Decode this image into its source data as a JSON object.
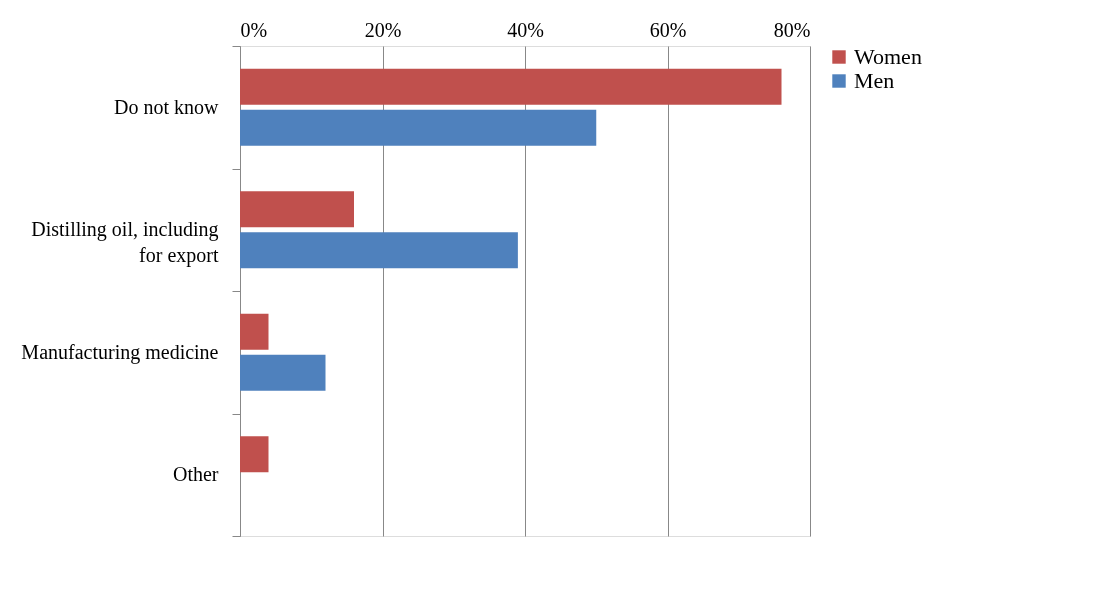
{
  "chart_data": {
    "type": "bar",
    "orientation": "horizontal",
    "categories": [
      "Do not know",
      "Distilling oil, including for export",
      "Manufacturing medicine",
      "Other"
    ],
    "series": [
      {
        "name": "Women",
        "color": "#c0504d",
        "values": [
          76,
          16,
          4,
          4
        ]
      },
      {
        "name": "Men",
        "color": "#4f81bd",
        "values": [
          50,
          39,
          12,
          null
        ]
      }
    ],
    "xlim": [
      0,
      80
    ],
    "xticks": [
      {
        "value": 0,
        "label": "0%"
      },
      {
        "value": 20,
        "label": "20%"
      },
      {
        "value": 40,
        "label": "40%"
      },
      {
        "value": 60,
        "label": "60%"
      },
      {
        "value": 80,
        "label": "80%"
      }
    ],
    "grid": "x",
    "legend": "right"
  }
}
